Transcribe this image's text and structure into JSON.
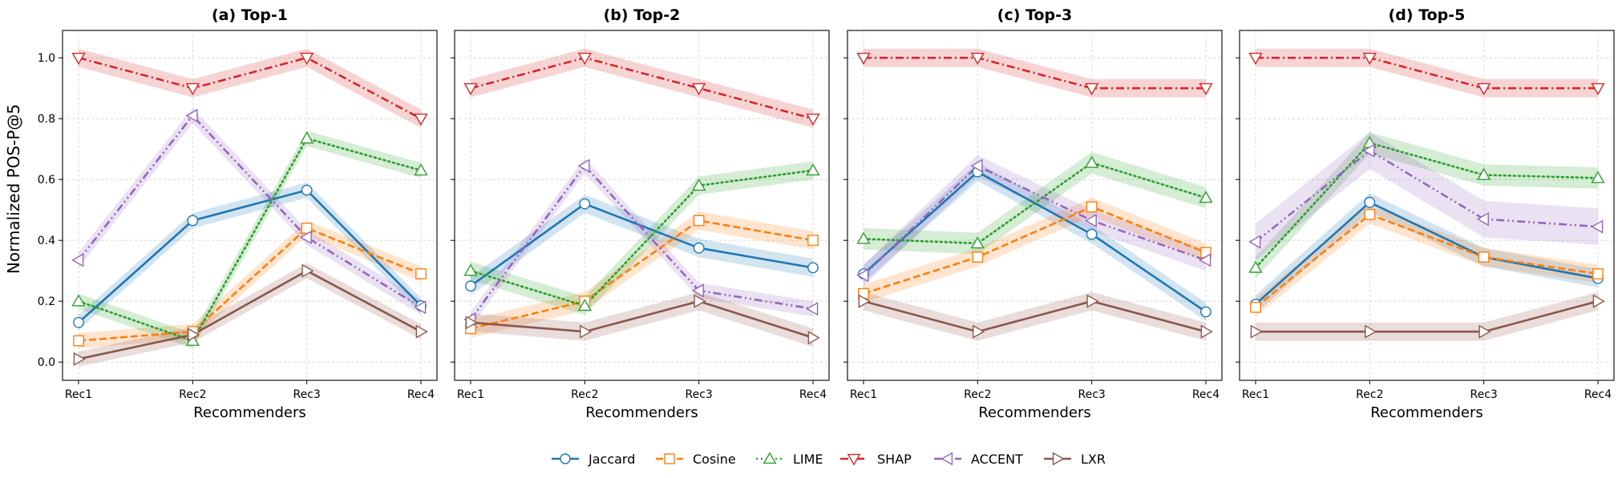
{
  "ylabel": "Normalized POS-P@5",
  "xlabel": "Recommenders",
  "legend_position": "bottom-center",
  "chart_data": {
    "type": "line",
    "categories": [
      "Rec1",
      "Rec2",
      "Rec3",
      "Rec4"
    ],
    "ylim": [
      -0.06,
      1.09
    ],
    "yticks": [
      "0.0",
      "0.2",
      "0.4",
      "0.6",
      "0.8",
      "1.0"
    ],
    "grid": true,
    "series_styles": [
      {
        "name": "Jaccard",
        "color": "#1f77b4",
        "marker": "circle",
        "dash": "solid"
      },
      {
        "name": "Cosine",
        "color": "#ff7f0e",
        "marker": "square",
        "dash": "dashed"
      },
      {
        "name": "LIME",
        "color": "#2ca02c",
        "marker": "triangle-up",
        "dash": "dotted"
      },
      {
        "name": "SHAP",
        "color": "#d62728",
        "marker": "triangle-down",
        "dash": "dashdot"
      },
      {
        "name": "ACCENT",
        "color": "#9467bd",
        "marker": "triangle-left",
        "dash": "dashdotdot"
      },
      {
        "name": "LXR",
        "color": "#8c564b",
        "marker": "triangle-right",
        "dash": "solid"
      }
    ],
    "panels": [
      {
        "title": "(a) Top-1",
        "series": [
          {
            "name": "Jaccard",
            "values": [
              0.13,
              0.465,
              0.565,
              0.185
            ],
            "band": 0.025
          },
          {
            "name": "Cosine",
            "values": [
              0.07,
              0.1,
              0.44,
              0.29
            ],
            "band": 0.025
          },
          {
            "name": "LIME",
            "values": [
              0.2,
              0.07,
              0.735,
              0.63
            ],
            "band": 0.025
          },
          {
            "name": "SHAP",
            "values": [
              1.0,
              0.9,
              1.0,
              0.8
            ],
            "band": 0.03
          },
          {
            "name": "ACCENT",
            "values": [
              0.335,
              0.81,
              0.41,
              0.18
            ],
            "band": 0.025
          },
          {
            "name": "LXR",
            "values": [
              0.01,
              0.09,
              0.3,
              0.1
            ],
            "band": 0.025
          }
        ]
      },
      {
        "title": "(b) Top-2",
        "series": [
          {
            "name": "Jaccard",
            "values": [
              0.25,
              0.52,
              0.375,
              0.31
            ],
            "band": 0.03
          },
          {
            "name": "Cosine",
            "values": [
              0.11,
              0.2,
              0.465,
              0.4
            ],
            "band": 0.03
          },
          {
            "name": "LIME",
            "values": [
              0.3,
              0.185,
              0.58,
              0.63
            ],
            "band": 0.03
          },
          {
            "name": "SHAP",
            "values": [
              0.9,
              1.0,
              0.9,
              0.8
            ],
            "band": 0.03
          },
          {
            "name": "ACCENT",
            "values": [
              0.14,
              0.645,
              0.235,
              0.175
            ],
            "band": 0.025
          },
          {
            "name": "LXR",
            "values": [
              0.13,
              0.1,
              0.2,
              0.08
            ],
            "band": 0.03
          }
        ]
      },
      {
        "title": "(c) Top-3",
        "series": [
          {
            "name": "Jaccard",
            "values": [
              0.29,
              0.625,
              0.42,
              0.165
            ],
            "band": 0.03
          },
          {
            "name": "Cosine",
            "values": [
              0.225,
              0.345,
              0.51,
              0.36
            ],
            "band": 0.03
          },
          {
            "name": "LIME",
            "values": [
              0.405,
              0.39,
              0.655,
              0.54
            ],
            "band": 0.035
          },
          {
            "name": "SHAP",
            "values": [
              1.0,
              1.0,
              0.9,
              0.9
            ],
            "band": 0.03
          },
          {
            "name": "ACCENT",
            "values": [
              0.285,
              0.645,
              0.465,
              0.335
            ],
            "band": 0.035
          },
          {
            "name": "LXR",
            "values": [
              0.2,
              0.1,
              0.2,
              0.1
            ],
            "band": 0.03
          }
        ]
      },
      {
        "title": "(d) Top-5",
        "series": [
          {
            "name": "Jaccard",
            "values": [
              0.19,
              0.525,
              0.345,
              0.275
            ],
            "band": 0.03
          },
          {
            "name": "Cosine",
            "values": [
              0.18,
              0.485,
              0.345,
              0.29
            ],
            "band": 0.03
          },
          {
            "name": "LIME",
            "values": [
              0.31,
              0.72,
              0.615,
              0.605
            ],
            "band": 0.035
          },
          {
            "name": "SHAP",
            "values": [
              1.0,
              1.0,
              0.9,
              0.9
            ],
            "band": 0.03
          },
          {
            "name": "ACCENT",
            "values": [
              0.395,
              0.695,
              0.47,
              0.445
            ],
            "band": 0.06
          },
          {
            "name": "LXR",
            "values": [
              0.1,
              0.1,
              0.1,
              0.2
            ],
            "band": 0.03
          }
        ]
      }
    ]
  }
}
